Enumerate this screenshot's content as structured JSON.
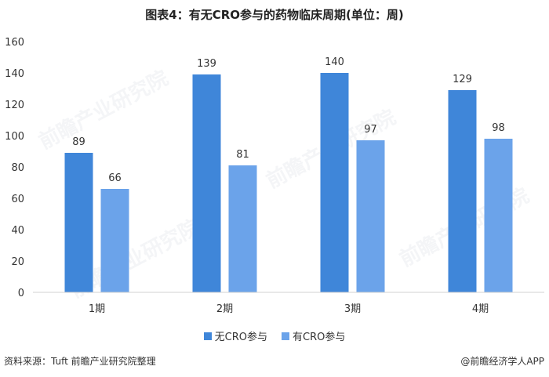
{
  "title": "图表4：有无CRO参与的药物临床周期(单位：周)",
  "source": "资料来源：Tuft 前瞻产业研究院整理",
  "credit": "@前瞻经济学人APP",
  "watermark": "前瞻产业研究院",
  "chart_data": {
    "type": "bar",
    "categories": [
      "1期",
      "2期",
      "3期",
      "4期"
    ],
    "series": [
      {
        "name": "无CRO参与",
        "values": [
          89,
          139,
          140,
          129
        ],
        "color": "#3f86d9"
      },
      {
        "name": "有CRO参与",
        "values": [
          66,
          81,
          97,
          98
        ],
        "color": "#6ba3ea"
      }
    ],
    "ylim": [
      0,
      160
    ],
    "yticks": [
      0,
      20,
      40,
      60,
      80,
      100,
      120,
      140,
      160
    ],
    "grid": false,
    "legend_position": "bottom",
    "data_labels": true
  }
}
